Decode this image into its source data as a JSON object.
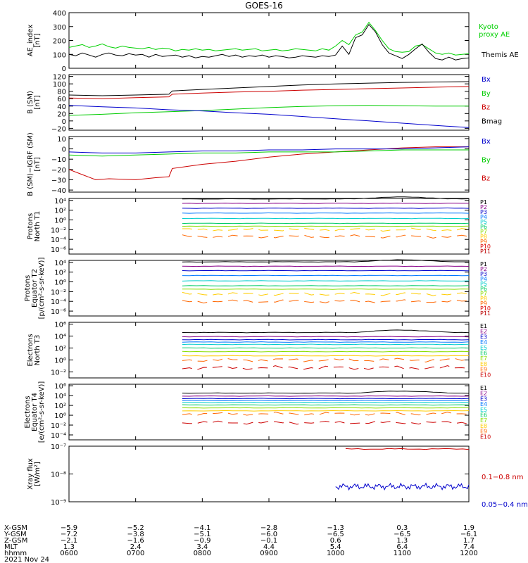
{
  "title": "GOES-16",
  "date": "2021 Nov 24",
  "chart_data": [
    {
      "type": "line",
      "ylabel": [
        "AE_index",
        "[nT]"
      ],
      "ylim": [
        0,
        400
      ],
      "yticks": [
        0,
        100,
        200,
        300,
        400
      ],
      "legend": [
        {
          "name": "Kyoto proxy AE",
          "lines": [
            "Kyoto",
            "proxy AE"
          ],
          "color": "#00d000"
        },
        {
          "name": "Themis AE",
          "lines": [
            "Themis AE"
          ],
          "color": "#000000"
        }
      ],
      "series": [
        {
          "name": "Kyoto proxy AE",
          "color": "#00d000",
          "x": [
            6.0,
            6.1,
            6.2,
            6.3,
            6.4,
            6.5,
            6.6,
            6.7,
            6.8,
            6.9,
            7.0,
            7.1,
            7.2,
            7.3,
            7.4,
            7.5,
            7.6,
            7.7,
            7.8,
            7.9,
            8.0,
            8.1,
            8.2,
            8.3,
            8.4,
            8.5,
            8.6,
            8.7,
            8.8,
            8.9,
            9.0,
            9.1,
            9.2,
            9.3,
            9.4,
            9.5,
            9.6,
            9.7,
            9.8,
            9.9,
            10.0,
            10.1,
            10.2,
            10.3,
            10.4,
            10.5,
            10.6,
            10.7,
            10.8,
            10.9,
            11.0,
            11.1,
            11.2,
            11.3,
            11.4,
            11.5,
            11.6,
            11.7,
            11.8,
            11.9,
            12.0
          ],
          "y": [
            150,
            160,
            170,
            150,
            160,
            175,
            155,
            145,
            160,
            150,
            145,
            140,
            150,
            135,
            145,
            140,
            125,
            135,
            130,
            140,
            130,
            135,
            125,
            130,
            135,
            140,
            130,
            135,
            140,
            125,
            130,
            135,
            125,
            130,
            140,
            135,
            130,
            125,
            140,
            130,
            160,
            200,
            170,
            240,
            260,
            330,
            270,
            200,
            140,
            120,
            115,
            120,
            160,
            170,
            140,
            110,
            100,
            110,
            95,
            100,
            105
          ]
        },
        {
          "name": "Themis AE",
          "color": "#000000",
          "x": [
            6.0,
            6.1,
            6.2,
            6.3,
            6.4,
            6.5,
            6.6,
            6.7,
            6.8,
            6.9,
            7.0,
            7.1,
            7.2,
            7.3,
            7.4,
            7.5,
            7.6,
            7.7,
            7.8,
            7.9,
            8.0,
            8.1,
            8.2,
            8.3,
            8.4,
            8.5,
            8.6,
            8.7,
            8.8,
            8.9,
            9.0,
            9.1,
            9.2,
            9.3,
            9.4,
            9.5,
            9.6,
            9.7,
            9.8,
            9.9,
            10.0,
            10.1,
            10.2,
            10.3,
            10.4,
            10.5,
            10.6,
            10.7,
            10.8,
            10.9,
            11.0,
            11.1,
            11.2,
            11.3,
            11.4,
            11.5,
            11.6,
            11.7,
            11.8,
            11.9,
            12.0
          ],
          "y": [
            100,
            90,
            110,
            95,
            80,
            100,
            110,
            95,
            90,
            105,
            95,
            100,
            80,
            100,
            85,
            90,
            95,
            80,
            90,
            75,
            85,
            80,
            90,
            100,
            85,
            95,
            80,
            90,
            85,
            95,
            80,
            90,
            85,
            75,
            80,
            90,
            85,
            80,
            90,
            85,
            95,
            160,
            100,
            220,
            240,
            315,
            260,
            170,
            110,
            90,
            70,
            100,
            140,
            175,
            115,
            70,
            60,
            80,
            60,
            70,
            75
          ]
        }
      ]
    },
    {
      "type": "line",
      "ylabel": [
        "B (SM)",
        "[nT]"
      ],
      "ylim": [
        -25,
        125
      ],
      "yticks": [
        -20,
        0,
        20,
        40,
        60,
        80,
        100,
        120
      ],
      "legend": [
        {
          "name": "Bx",
          "lines": [
            "Bx"
          ],
          "color": "#0000cc"
        },
        {
          "name": "By",
          "lines": [
            "By"
          ],
          "color": "#00cc00"
        },
        {
          "name": "Bz",
          "lines": [
            "Bz"
          ],
          "color": "#cc0000"
        },
        {
          "name": "Bmag",
          "lines": [
            "Bmag"
          ],
          "color": "#000000"
        }
      ],
      "series": [
        {
          "name": "Bmag",
          "color": "#000000",
          "x": [
            6.0,
            6.5,
            7.0,
            7.5,
            7.55,
            8.0,
            8.5,
            9.0,
            9.5,
            10.0,
            10.5,
            11.0,
            11.5,
            12.0
          ],
          "y": [
            70,
            68,
            70,
            72,
            81,
            85,
            89,
            93,
            97,
            100,
            102,
            104,
            105,
            106
          ]
        },
        {
          "name": "Bz",
          "color": "#cc0000",
          "x": [
            6.0,
            6.5,
            7.0,
            7.5,
            7.55,
            8.0,
            8.5,
            9.0,
            9.5,
            10.0,
            10.5,
            11.0,
            11.5,
            12.0
          ],
          "y": [
            62,
            60,
            63,
            65,
            72,
            75,
            78,
            80,
            83,
            85,
            87,
            89,
            91,
            93
          ]
        },
        {
          "name": "By",
          "color": "#00cc00",
          "x": [
            6.0,
            6.5,
            7.0,
            7.5,
            8.0,
            8.5,
            9.0,
            9.5,
            10.0,
            10.5,
            11.0,
            11.5,
            12.0
          ],
          "y": [
            15,
            18,
            22,
            25,
            28,
            32,
            36,
            39,
            41,
            42,
            41,
            40,
            40
          ]
        },
        {
          "name": "Bx",
          "color": "#0000cc",
          "x": [
            6.0,
            6.5,
            7.0,
            7.5,
            8.0,
            8.5,
            9.0,
            9.5,
            10.0,
            10.5,
            11.0,
            11.5,
            12.0
          ],
          "y": [
            42,
            38,
            35,
            30,
            27,
            22,
            18,
            12,
            6,
            0,
            -6,
            -12,
            -18
          ]
        }
      ]
    },
    {
      "type": "line",
      "ylabel": [
        "B (SM)−IGRF (SM)",
        "[nT]"
      ],
      "ylim": [
        -42,
        12
      ],
      "yticks": [
        -40,
        -30,
        -20,
        -10,
        0,
        10
      ],
      "legend": [
        {
          "name": "Bx",
          "lines": [
            "Bx"
          ],
          "color": "#0000cc"
        },
        {
          "name": "By",
          "lines": [
            "By"
          ],
          "color": "#00cc00"
        },
        {
          "name": "Bz",
          "lines": [
            "Bz"
          ],
          "color": "#cc0000"
        }
      ],
      "series": [
        {
          "name": "Bz",
          "color": "#cc0000",
          "x": [
            6.0,
            6.2,
            6.4,
            6.6,
            7.0,
            7.3,
            7.5,
            7.55,
            8.0,
            8.5,
            9.0,
            9.5,
            10.0,
            10.5,
            11.0,
            11.5,
            12.0
          ],
          "y": [
            -20,
            -25,
            -30,
            -29,
            -30,
            -28,
            -27,
            -19,
            -15,
            -12,
            -8,
            -5,
            -3,
            -1,
            1,
            2,
            2
          ]
        },
        {
          "name": "By",
          "color": "#00cc00",
          "x": [
            6.0,
            6.5,
            7.0,
            7.5,
            8.0,
            8.5,
            9.0,
            9.5,
            10.0,
            10.5,
            11.0,
            11.5,
            12.0
          ],
          "y": [
            -6,
            -7,
            -6,
            -5,
            -4,
            -4,
            -3,
            -3,
            -3,
            -2,
            -1,
            -1,
            -1
          ]
        },
        {
          "name": "Bx",
          "color": "#0000cc",
          "x": [
            6.0,
            6.5,
            7.0,
            7.5,
            8.0,
            8.5,
            9.0,
            9.5,
            10.0,
            10.5,
            11.0,
            11.5,
            12.0
          ],
          "y": [
            -3,
            -4,
            -4,
            -3,
            -2,
            -2,
            -1,
            -1,
            0,
            0,
            0,
            1,
            2
          ]
        }
      ]
    },
    {
      "type": "line",
      "ylabel": [
        "Protons",
        "North T1"
      ],
      "yscale": "log",
      "ylim": [
        -7,
        4.4
      ],
      "ytickexp": [
        -6,
        -4,
        -2,
        0,
        2,
        4
      ],
      "legend_labels": [
        "P1",
        "P2",
        "P3",
        "P4",
        "P5",
        "P6",
        "P7",
        "P8",
        "P9",
        "P10",
        "P11"
      ],
      "levels": [
        4.3,
        3.4,
        2.4,
        1.4,
        0.3,
        -0.7,
        -1.3,
        -2.0,
        -3.4
      ],
      "colors": [
        "#000000",
        "#880088",
        "#0000cc",
        "#0077ff",
        "#00cccc",
        "#00cc66",
        "#88dd00",
        "#ffcc00",
        "#ff6600",
        "#dd0000",
        "#bb0000"
      ],
      "x_start": 7.7,
      "x_end": 12.0
    },
    {
      "type": "line",
      "ylabel": [
        "Protons",
        "Equator T2",
        "[p/(cm²-s-sr-keV)]"
      ],
      "yscale": "log",
      "ylim": [
        -7,
        4.4
      ],
      "ytickexp": [
        -6,
        -4,
        -2,
        0,
        2,
        4
      ],
      "legend_labels": [
        "P1",
        "P2",
        "P3",
        "P4",
        "P5",
        "P6",
        "P7",
        "P8",
        "P9",
        "P10",
        "P11"
      ],
      "levels": [
        4.1,
        3.2,
        2.3,
        1.3,
        0.2,
        -0.8,
        -1.5,
        -2.5,
        -4.0
      ],
      "colors": [
        "#000000",
        "#880088",
        "#0000cc",
        "#0077ff",
        "#00cccc",
        "#00cc66",
        "#88dd00",
        "#ffcc00",
        "#ff6600",
        "#dd0000",
        "#bb0000"
      ],
      "x_start": 7.7,
      "x_end": 12.0
    },
    {
      "type": "line",
      "ylabel": [
        "Electrons",
        "North T3"
      ],
      "yscale": "log",
      "ylim": [
        -3,
        6.3
      ],
      "ytickexp": [
        -2,
        0,
        2,
        4,
        6
      ],
      "legend_labels": [
        "E1",
        "E2",
        "E3",
        "E4",
        "E5",
        "E6",
        "E7",
        "E8",
        "E9",
        "E10"
      ],
      "levels": [
        4.6,
        3.9,
        3.4,
        3.0,
        2.6,
        2.0,
        1.4,
        0.7,
        0.0,
        -1.3
      ],
      "colors": [
        "#000000",
        "#880088",
        "#0000cc",
        "#0077ff",
        "#00cccc",
        "#00cc66",
        "#88dd00",
        "#ffcc00",
        "#ff6600",
        "#cc0000"
      ],
      "x_start": 7.7,
      "x_end": 12.0
    },
    {
      "type": "line",
      "ylabel": [
        "Electrons",
        "Equator T4",
        "[e/(cm²-s-sr-keV)]"
      ],
      "yscale": "log",
      "ylim": [
        -5,
        6.3
      ],
      "ytickexp": [
        -4,
        -2,
        0,
        2,
        4,
        6
      ],
      "legend_labels": [
        "E1",
        "E2",
        "E3",
        "E4",
        "E5",
        "E6",
        "E7",
        "E8",
        "E9",
        "E10"
      ],
      "levels": [
        4.5,
        3.9,
        3.4,
        3.0,
        2.6,
        2.1,
        1.5,
        0.9,
        0.3,
        -1.5
      ],
      "colors": [
        "#000000",
        "#880088",
        "#0000cc",
        "#0077ff",
        "#00cccc",
        "#00cc66",
        "#88dd00",
        "#ffcc00",
        "#ff6600",
        "#cc0000"
      ],
      "x_start": 7.7,
      "x_end": 12.0
    },
    {
      "type": "line",
      "ylabel": [
        "Xray flux",
        "[W/m²]"
      ],
      "yscale": "log",
      "ylim": [
        -9,
        -7
      ],
      "ytickexp": [
        -9,
        -8,
        -7
      ],
      "legend": [
        {
          "name": "0.1-0.8 nm",
          "lines": [
            "0.1−0.8 nm"
          ],
          "color": "#cc0000"
        },
        {
          "name": "0.05-0.4 nm",
          "lines": [
            "0.05−0.4 nm"
          ],
          "color": "#0000cc"
        }
      ],
      "series": [
        {
          "name": "0.1-0.8 nm",
          "color": "#cc0000",
          "x_start": 10.15,
          "x_end": 12.0,
          "logy": -7.1
        },
        {
          "name": "0.05-0.4 nm",
          "color": "#0000cc",
          "x_start": 10.0,
          "x_end": 12.0,
          "logy": -8.45
        }
      ]
    }
  ],
  "x_axis": {
    "range": [
      6,
      12
    ],
    "ticks": [
      6,
      7,
      8,
      9,
      10,
      11,
      12
    ],
    "rows": [
      {
        "label": "X-GSM",
        "values": [
          "−5.9",
          "−5.2",
          "−4.1",
          "−2.8",
          "−1.3",
          "0.3",
          "1.9"
        ]
      },
      {
        "label": "Y-GSM",
        "values": [
          "−7.2",
          "−3.8",
          "−5.1",
          "−6.0",
          "−6.5",
          "−6.5",
          "−6.1"
        ]
      },
      {
        "label": "Z-GSM",
        "values": [
          "−2.1",
          "−1.6",
          "−0.9",
          "−0.1",
          "0.6",
          "1.3",
          "1.7"
        ]
      },
      {
        "label": "MLT",
        "values": [
          "1.3",
          "2.4",
          "3.4",
          "4.4",
          "5.4",
          "6.4",
          "7.4"
        ]
      },
      {
        "label": "hhmm",
        "values": [
          "0600",
          "0700",
          "0800",
          "0900",
          "1000",
          "1100",
          "1200"
        ]
      }
    ]
  }
}
